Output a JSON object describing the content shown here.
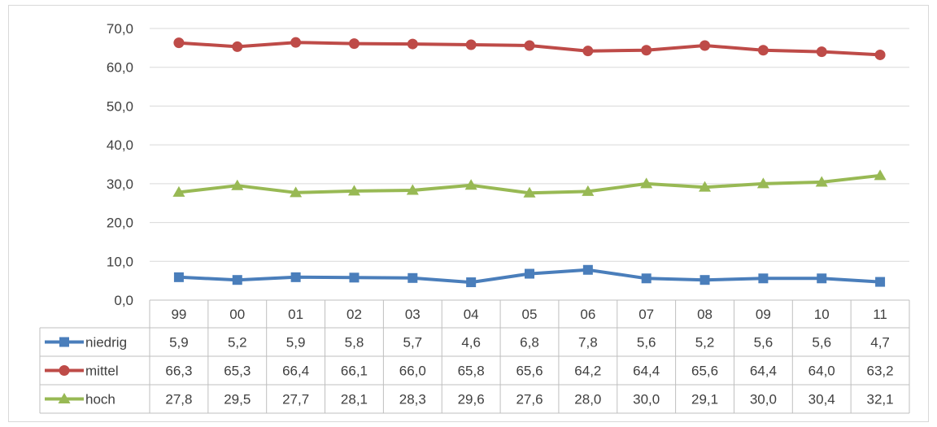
{
  "chart_data": {
    "type": "line",
    "categories": [
      "99",
      "00",
      "01",
      "02",
      "03",
      "04",
      "05",
      "06",
      "07",
      "08",
      "09",
      "10",
      "11"
    ],
    "ylim": [
      0,
      70
    ],
    "yticks": [
      "0,0",
      "10,0",
      "20,0",
      "30,0",
      "40,0",
      "50,0",
      "60,0",
      "70,0"
    ],
    "grid": true,
    "legend": "data-table",
    "series": [
      {
        "name": "niedrig",
        "color": "#4a7ebb",
        "marker": "square",
        "values": [
          5.9,
          5.2,
          5.9,
          5.8,
          5.7,
          4.6,
          6.8,
          7.8,
          5.6,
          5.2,
          5.6,
          5.6,
          4.7
        ],
        "labels": [
          "5,9",
          "5,2",
          "5,9",
          "5,8",
          "5,7",
          "4,6",
          "6,8",
          "7,8",
          "5,6",
          "5,2",
          "5,6",
          "5,6",
          "4,7"
        ]
      },
      {
        "name": "mittel",
        "color": "#be4b48",
        "marker": "circle",
        "values": [
          66.3,
          65.3,
          66.4,
          66.1,
          66.0,
          65.8,
          65.6,
          64.2,
          64.4,
          65.6,
          64.4,
          64.0,
          63.2
        ],
        "labels": [
          "66,3",
          "65,3",
          "66,4",
          "66,1",
          "66,0",
          "65,8",
          "65,6",
          "64,2",
          "64,4",
          "65,6",
          "64,4",
          "64,0",
          "63,2"
        ]
      },
      {
        "name": "hoch",
        "color": "#98b954",
        "marker": "triangle",
        "values": [
          27.8,
          29.5,
          27.7,
          28.1,
          28.3,
          29.6,
          27.6,
          28.0,
          30.0,
          29.1,
          30.0,
          30.4,
          32.1
        ],
        "labels": [
          "27,8",
          "29,5",
          "27,7",
          "28,1",
          "28,3",
          "29,6",
          "27,6",
          "28,0",
          "30,0",
          "29,1",
          "30,0",
          "30,4",
          "32,1"
        ]
      }
    ]
  }
}
